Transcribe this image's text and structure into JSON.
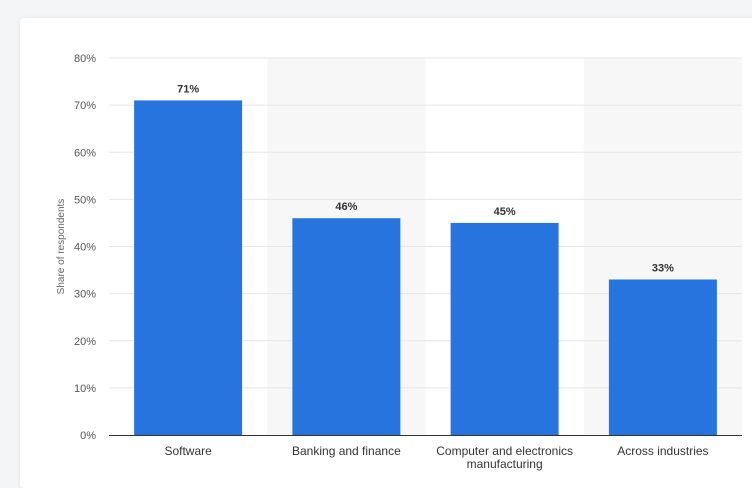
{
  "chart_data": {
    "type": "bar",
    "categories": [
      "Software",
      "Banking and finance",
      "Computer and electronics manufacturing",
      "Across industries"
    ],
    "category_lines": [
      [
        "Software"
      ],
      [
        "Banking and finance"
      ],
      [
        "Computer and electronics",
        "manufacturing"
      ],
      [
        "Across industries"
      ]
    ],
    "values": [
      71,
      46,
      45,
      33
    ],
    "data_labels": [
      "71%",
      "46%",
      "45%",
      "33%"
    ],
    "ylabel": "Share of respondents",
    "ylim": [
      0,
      80
    ],
    "yticks": [
      0,
      10,
      20,
      30,
      40,
      50,
      60,
      70,
      80
    ],
    "ytick_labels": [
      "0%",
      "10%",
      "20%",
      "30%",
      "40%",
      "50%",
      "60%",
      "70%",
      "80%"
    ],
    "grid": true,
    "colors": {
      "bar": "#2874df",
      "grid": "#e6e6e6",
      "band": "#f7f7f7",
      "axis": "#333333"
    }
  }
}
